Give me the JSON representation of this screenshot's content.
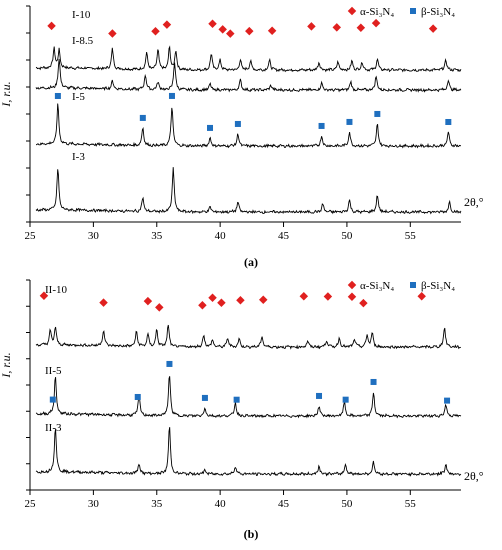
{
  "legend": {
    "alpha_label": "α-Si₃N₄",
    "beta_label": "β-Si₃N₄",
    "alpha_color": "#e0201f",
    "beta_color": "#1f6fbf",
    "placement": "top-right"
  },
  "chart_data": [
    {
      "type": "line",
      "panel_label": "(a)",
      "xlabel": "2θ,°",
      "ylabel": "I, r.u.",
      "xlim": [
        25,
        59
      ],
      "x_ticks": [
        25,
        30,
        35,
        40,
        45,
        50,
        55
      ],
      "y_ticks": 8,
      "grid": false,
      "series": [
        {
          "name": "I-10",
          "peaks": [
            [
              26.9,
              20
            ],
            [
              27.3,
              18
            ],
            [
              31.5,
              20
            ],
            [
              34.2,
              17
            ],
            [
              35.1,
              20
            ],
            [
              36.0,
              22
            ],
            [
              36.5,
              19
            ],
            [
              39.3,
              16
            ],
            [
              40.0,
              10
            ],
            [
              41.6,
              10
            ],
            [
              42.4,
              9
            ],
            [
              43.9,
              10
            ],
            [
              47.8,
              8
            ],
            [
              49.3,
              8
            ],
            [
              50.4,
              9
            ],
            [
              51.2,
              8
            ],
            [
              52.4,
              11
            ],
            [
              57.8,
              10
            ]
          ],
          "alpha_markers": [
            26.7,
            31.5,
            34.9,
            35.8,
            39.4,
            40.2,
            40.8,
            42.3,
            44.1,
            47.2,
            49.2,
            51.1,
            52.3,
            56.8
          ]
        },
        {
          "name": "I-8.5",
          "peaks": [
            [
              27.3,
              30
            ],
            [
              31.5,
              8
            ],
            [
              34.1,
              15
            ],
            [
              35.1,
              8
            ],
            [
              36.4,
              28
            ],
            [
              39.2,
              6
            ],
            [
              41.6,
              10
            ],
            [
              44.0,
              5
            ],
            [
              48.0,
              7
            ],
            [
              50.3,
              8
            ],
            [
              52.3,
              14
            ],
            [
              58.0,
              10
            ]
          ],
          "alpha_markers": []
        },
        {
          "name": "I-5",
          "peaks": [
            [
              27.2,
              40
            ],
            [
              33.9,
              18
            ],
            [
              36.2,
              40
            ],
            [
              39.2,
              8
            ],
            [
              41.4,
              12
            ],
            [
              48.0,
              10
            ],
            [
              50.2,
              14
            ],
            [
              52.4,
              22
            ],
            [
              58.0,
              14
            ]
          ],
          "beta_markers": [
            27.2,
            33.9,
            36.2,
            39.2,
            41.4,
            48.0,
            50.2,
            52.4,
            58.0
          ]
        },
        {
          "name": "I-3",
          "peaks": [
            [
              27.2,
              42
            ],
            [
              33.9,
              14
            ],
            [
              36.3,
              44
            ],
            [
              39.2,
              5
            ],
            [
              41.4,
              10
            ],
            [
              48.1,
              8
            ],
            [
              50.2,
              12
            ],
            [
              52.4,
              17
            ],
            [
              58.1,
              10
            ]
          ],
          "beta_markers": []
        }
      ]
    },
    {
      "type": "line",
      "panel_label": "(b)",
      "xlabel": "2θ,°",
      "ylabel": "I, r.u.",
      "xlim": [
        25,
        59
      ],
      "x_ticks": [
        25,
        30,
        35,
        40,
        45,
        50,
        55
      ],
      "y_ticks": 8,
      "grid": false,
      "series": [
        {
          "name": "II-10",
          "peaks": [
            [
              26.6,
              14
            ],
            [
              27.0,
              18
            ],
            [
              30.8,
              16
            ],
            [
              33.4,
              15
            ],
            [
              34.3,
              12
            ],
            [
              35.0,
              17
            ],
            [
              35.9,
              22
            ],
            [
              38.7,
              12
            ],
            [
              39.4,
              7
            ],
            [
              40.6,
              9
            ],
            [
              41.5,
              8
            ],
            [
              43.3,
              11
            ],
            [
              46.9,
              6
            ],
            [
              48.4,
              7
            ],
            [
              49.4,
              9
            ],
            [
              50.6,
              8
            ],
            [
              51.6,
              12
            ],
            [
              52.0,
              14
            ],
            [
              57.7,
              20
            ]
          ],
          "alpha_markers": [
            26.1,
            30.8,
            34.3,
            35.2,
            38.6,
            39.4,
            40.1,
            41.6,
            43.4,
            46.6,
            48.5,
            50.4,
            51.3,
            55.9
          ]
        },
        {
          "name": "II-5",
          "peaks": [
            [
              27.0,
              38
            ],
            [
              33.6,
              20
            ],
            [
              36.0,
              42
            ],
            [
              38.8,
              8
            ],
            [
              41.2,
              14
            ],
            [
              47.8,
              10
            ],
            [
              49.8,
              14
            ],
            [
              52.1,
              24
            ],
            [
              57.8,
              12
            ]
          ],
          "beta_markers": [
            26.8,
            33.5,
            36.0,
            38.8,
            41.3,
            47.8,
            49.9,
            52.1,
            57.9
          ]
        },
        {
          "name": "II-3",
          "peaks": [
            [
              27.0,
              46
            ],
            [
              33.6,
              10
            ],
            [
              36.0,
              48
            ],
            [
              38.8,
              4
            ],
            [
              41.2,
              8
            ],
            [
              47.8,
              8
            ],
            [
              49.9,
              10
            ],
            [
              52.1,
              12
            ],
            [
              57.8,
              10
            ]
          ],
          "beta_markers": []
        }
      ]
    }
  ]
}
